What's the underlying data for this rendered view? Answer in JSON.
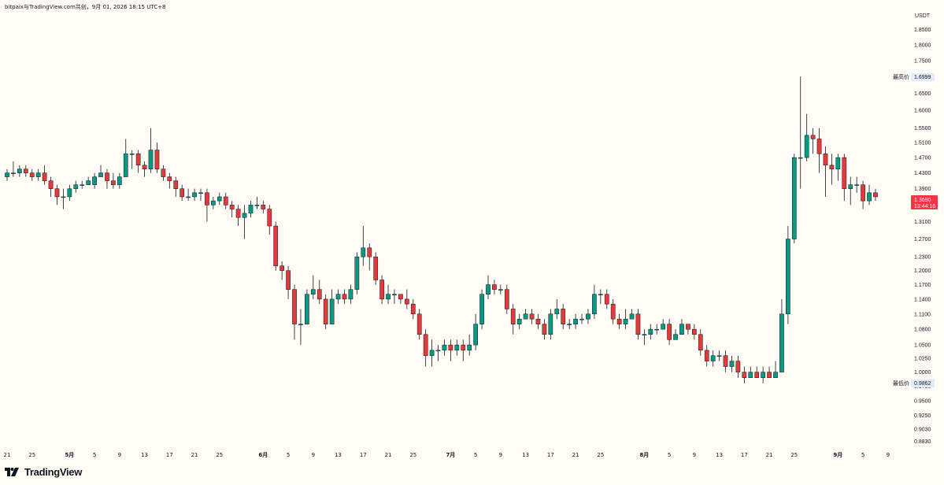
{
  "header": {
    "caption": "bitpaix与TradingView.com共创，9月 01, 2026 18:15 UTC+8"
  },
  "brand": {
    "name": "TradingView",
    "logo_icon": "tradingview-logo-icon"
  },
  "colors": {
    "up": "#089981",
    "down": "#f23645",
    "down_fill": "#e03a3a",
    "background": "#fffcf5",
    "axis_text": "#131722",
    "current_label_bg": "#f23645",
    "hi_lo_label_bg": "#e3ecfa"
  },
  "chart_data": {
    "type": "candlestick",
    "title": "",
    "y_unit": "USDT",
    "y_scale": "log",
    "ylim": [
      0.8689,
      1.9017
    ],
    "y_ticks": [
      "1.8500",
      "1.8000",
      "1.7500",
      "1.7000",
      "1.6500",
      "1.6000",
      "1.5500",
      "1.5100",
      "1.4700",
      "1.4300",
      "1.3900",
      "1.3500",
      "1.3100",
      "1.2700",
      "1.2300",
      "1.2000",
      "1.1700",
      "1.1400",
      "1.1100",
      "1.0800",
      "1.0500",
      "1.0250",
      "1.0000",
      "0.9750",
      "0.9500",
      "0.9250",
      "0.9030",
      "0.8830"
    ],
    "x_ticks": [
      {
        "label": "21",
        "day": 0
      },
      {
        "label": "25",
        "day": 4
      },
      {
        "label": "5月",
        "day": 10
      },
      {
        "label": "5",
        "day": 14
      },
      {
        "label": "9",
        "day": 18
      },
      {
        "label": "13",
        "day": 22
      },
      {
        "label": "17",
        "day": 26
      },
      {
        "label": "21",
        "day": 30
      },
      {
        "label": "25",
        "day": 34
      },
      {
        "label": "6月",
        "day": 41
      },
      {
        "label": "5",
        "day": 45
      },
      {
        "label": "9",
        "day": 49
      },
      {
        "label": "13",
        "day": 53
      },
      {
        "label": "17",
        "day": 57
      },
      {
        "label": "21",
        "day": 61
      },
      {
        "label": "25",
        "day": 65
      },
      {
        "label": "7月",
        "day": 71
      },
      {
        "label": "5",
        "day": 75
      },
      {
        "label": "9",
        "day": 79
      },
      {
        "label": "13",
        "day": 83
      },
      {
        "label": "17",
        "day": 87
      },
      {
        "label": "21",
        "day": 91
      },
      {
        "label": "25",
        "day": 95
      },
      {
        "label": "8月",
        "day": 102
      },
      {
        "label": "5",
        "day": 106
      },
      {
        "label": "9",
        "day": 110
      },
      {
        "label": "13",
        "day": 114
      },
      {
        "label": "17",
        "day": 118
      },
      {
        "label": "21",
        "day": 122
      },
      {
        "label": "25",
        "day": 126
      },
      {
        "label": "9月",
        "day": 133
      },
      {
        "label": "5",
        "day": 137
      },
      {
        "label": "9",
        "day": 141
      }
    ],
    "x_start_date": "2026-04-21",
    "high_label": {
      "text": "最高价",
      "value": "1.6999"
    },
    "low_label": {
      "text": "最低价",
      "value": "0.9862"
    },
    "current_label": {
      "value": "1.3690",
      "countdown": "13:44:16"
    },
    "candles": [
      [
        1.42,
        1.43,
        1.44,
        1.41
      ],
      [
        1.43,
        1.43,
        1.46,
        1.42
      ],
      [
        1.43,
        1.44,
        1.45,
        1.42
      ],
      [
        1.44,
        1.43,
        1.45,
        1.42
      ],
      [
        1.43,
        1.42,
        1.44,
        1.41
      ],
      [
        1.42,
        1.43,
        1.44,
        1.41
      ],
      [
        1.43,
        1.41,
        1.45,
        1.4
      ],
      [
        1.41,
        1.39,
        1.42,
        1.37
      ],
      [
        1.39,
        1.37,
        1.4,
        1.35
      ],
      [
        1.37,
        1.37,
        1.39,
        1.34
      ],
      [
        1.37,
        1.39,
        1.4,
        1.36
      ],
      [
        1.39,
        1.4,
        1.41,
        1.38
      ],
      [
        1.4,
        1.4,
        1.41,
        1.39
      ],
      [
        1.4,
        1.41,
        1.42,
        1.4
      ],
      [
        1.4,
        1.42,
        1.43,
        1.39
      ],
      [
        1.42,
        1.43,
        1.45,
        1.42
      ],
      [
        1.43,
        1.41,
        1.44,
        1.39
      ],
      [
        1.41,
        1.4,
        1.43,
        1.39
      ],
      [
        1.4,
        1.42,
        1.43,
        1.39
      ],
      [
        1.42,
        1.48,
        1.52,
        1.42
      ],
      [
        1.48,
        1.48,
        1.49,
        1.44
      ],
      [
        1.48,
        1.45,
        1.49,
        1.43
      ],
      [
        1.45,
        1.44,
        1.46,
        1.42
      ],
      [
        1.44,
        1.49,
        1.55,
        1.43
      ],
      [
        1.49,
        1.44,
        1.51,
        1.43
      ],
      [
        1.44,
        1.42,
        1.45,
        1.41
      ],
      [
        1.42,
        1.41,
        1.43,
        1.39
      ],
      [
        1.41,
        1.39,
        1.42,
        1.37
      ],
      [
        1.39,
        1.37,
        1.4,
        1.36
      ],
      [
        1.37,
        1.37,
        1.39,
        1.36
      ],
      [
        1.37,
        1.38,
        1.39,
        1.36
      ],
      [
        1.38,
        1.38,
        1.39,
        1.36
      ],
      [
        1.38,
        1.35,
        1.39,
        1.31
      ],
      [
        1.35,
        1.36,
        1.37,
        1.34
      ],
      [
        1.36,
        1.37,
        1.38,
        1.35
      ],
      [
        1.37,
        1.35,
        1.38,
        1.34
      ],
      [
        1.35,
        1.34,
        1.36,
        1.32
      ],
      [
        1.34,
        1.32,
        1.35,
        1.3
      ],
      [
        1.32,
        1.33,
        1.35,
        1.27
      ],
      [
        1.33,
        1.35,
        1.36,
        1.32
      ],
      [
        1.35,
        1.35,
        1.37,
        1.34
      ],
      [
        1.35,
        1.34,
        1.36,
        1.33
      ],
      [
        1.34,
        1.3,
        1.35,
        1.28
      ],
      [
        1.3,
        1.21,
        1.31,
        1.2
      ],
      [
        1.21,
        1.2,
        1.22,
        1.18
      ],
      [
        1.2,
        1.16,
        1.21,
        1.14
      ],
      [
        1.16,
        1.09,
        1.17,
        1.06
      ],
      [
        1.09,
        1.09,
        1.12,
        1.05
      ],
      [
        1.09,
        1.15,
        1.16,
        1.09
      ],
      [
        1.15,
        1.16,
        1.19,
        1.14
      ],
      [
        1.16,
        1.14,
        1.18,
        1.13
      ],
      [
        1.14,
        1.09,
        1.15,
        1.08
      ],
      [
        1.09,
        1.14,
        1.16,
        1.09
      ],
      [
        1.14,
        1.15,
        1.16,
        1.13
      ],
      [
        1.15,
        1.14,
        1.16,
        1.13
      ],
      [
        1.14,
        1.16,
        1.17,
        1.13
      ],
      [
        1.16,
        1.23,
        1.24,
        1.15
      ],
      [
        1.23,
        1.25,
        1.3,
        1.21
      ],
      [
        1.25,
        1.23,
        1.26,
        1.2
      ],
      [
        1.23,
        1.18,
        1.24,
        1.17
      ],
      [
        1.18,
        1.14,
        1.19,
        1.13
      ],
      [
        1.14,
        1.15,
        1.17,
        1.13
      ],
      [
        1.15,
        1.15,
        1.16,
        1.13
      ],
      [
        1.15,
        1.14,
        1.15,
        1.13
      ],
      [
        1.14,
        1.13,
        1.16,
        1.12
      ],
      [
        1.13,
        1.11,
        1.14,
        1.1
      ],
      [
        1.11,
        1.07,
        1.12,
        1.06
      ],
      [
        1.07,
        1.03,
        1.08,
        1.01
      ],
      [
        1.03,
        1.04,
        1.06,
        1.01
      ],
      [
        1.04,
        1.04,
        1.05,
        1.02
      ],
      [
        1.04,
        1.05,
        1.06,
        1.03
      ],
      [
        1.05,
        1.04,
        1.06,
        1.02
      ],
      [
        1.04,
        1.05,
        1.06,
        1.03
      ],
      [
        1.05,
        1.04,
        1.06,
        1.02
      ],
      [
        1.04,
        1.05,
        1.07,
        1.03
      ],
      [
        1.05,
        1.09,
        1.11,
        1.04
      ],
      [
        1.09,
        1.15,
        1.16,
        1.08
      ],
      [
        1.15,
        1.17,
        1.19,
        1.14
      ],
      [
        1.17,
        1.16,
        1.18,
        1.15
      ],
      [
        1.16,
        1.16,
        1.17,
        1.15
      ],
      [
        1.16,
        1.12,
        1.17,
        1.11
      ],
      [
        1.12,
        1.09,
        1.13,
        1.07
      ],
      [
        1.09,
        1.1,
        1.11,
        1.08
      ],
      [
        1.1,
        1.11,
        1.12,
        1.1
      ],
      [
        1.11,
        1.1,
        1.12,
        1.09
      ],
      [
        1.1,
        1.09,
        1.11,
        1.08
      ],
      [
        1.09,
        1.07,
        1.1,
        1.06
      ],
      [
        1.07,
        1.11,
        1.12,
        1.06
      ],
      [
        1.11,
        1.12,
        1.14,
        1.1
      ],
      [
        1.12,
        1.09,
        1.13,
        1.08
      ],
      [
        1.09,
        1.09,
        1.1,
        1.08
      ],
      [
        1.09,
        1.1,
        1.11,
        1.08
      ],
      [
        1.1,
        1.1,
        1.11,
        1.09
      ],
      [
        1.1,
        1.11,
        1.12,
        1.09
      ],
      [
        1.11,
        1.15,
        1.17,
        1.1
      ],
      [
        1.15,
        1.15,
        1.16,
        1.13
      ],
      [
        1.15,
        1.13,
        1.16,
        1.12
      ],
      [
        1.13,
        1.1,
        1.14,
        1.09
      ],
      [
        1.1,
        1.09,
        1.11,
        1.08
      ],
      [
        1.09,
        1.1,
        1.12,
        1.08
      ],
      [
        1.1,
        1.11,
        1.12,
        1.1
      ],
      [
        1.11,
        1.07,
        1.12,
        1.06
      ],
      [
        1.07,
        1.07,
        1.08,
        1.05
      ],
      [
        1.07,
        1.08,
        1.09,
        1.06
      ],
      [
        1.08,
        1.08,
        1.09,
        1.07
      ],
      [
        1.08,
        1.09,
        1.1,
        1.08
      ],
      [
        1.09,
        1.06,
        1.1,
        1.05
      ],
      [
        1.06,
        1.07,
        1.08,
        1.06
      ],
      [
        1.07,
        1.09,
        1.1,
        1.07
      ],
      [
        1.09,
        1.08,
        1.09,
        1.07
      ],
      [
        1.08,
        1.07,
        1.09,
        1.06
      ],
      [
        1.07,
        1.04,
        1.08,
        1.03
      ],
      [
        1.04,
        1.02,
        1.05,
        1.01
      ],
      [
        1.02,
        1.03,
        1.04,
        1.01
      ],
      [
        1.03,
        1.03,
        1.04,
        1.02
      ],
      [
        1.03,
        1.01,
        1.04,
        1.0
      ],
      [
        1.01,
        1.02,
        1.03,
        1.0
      ],
      [
        1.02,
        1.0,
        1.03,
        0.99
      ],
      [
        1.0,
        0.99,
        1.01,
        0.98
      ],
      [
        0.99,
        1.0,
        1.01,
        0.99
      ],
      [
        1.0,
        0.99,
        1.01,
        0.99
      ],
      [
        0.99,
        1.0,
        1.01,
        0.98
      ],
      [
        1.0,
        0.99,
        1.01,
        0.99
      ],
      [
        0.99,
        1.0,
        1.02,
        0.99
      ],
      [
        1.0,
        1.11,
        1.14,
        1.0
      ],
      [
        1.11,
        1.27,
        1.3,
        1.09
      ],
      [
        1.27,
        1.47,
        1.48,
        1.26
      ],
      [
        1.47,
        1.47,
        1.7,
        1.39
      ],
      [
        1.47,
        1.53,
        1.59,
        1.46
      ],
      [
        1.53,
        1.52,
        1.55,
        1.48
      ],
      [
        1.52,
        1.48,
        1.55,
        1.43
      ],
      [
        1.48,
        1.45,
        1.5,
        1.37
      ],
      [
        1.45,
        1.44,
        1.48,
        1.4
      ],
      [
        1.44,
        1.47,
        1.48,
        1.41
      ],
      [
        1.47,
        1.39,
        1.48,
        1.36
      ],
      [
        1.39,
        1.4,
        1.42,
        1.35
      ],
      [
        1.4,
        1.4,
        1.42,
        1.38
      ],
      [
        1.4,
        1.36,
        1.41,
        1.34
      ],
      [
        1.36,
        1.38,
        1.4,
        1.35
      ],
      [
        1.38,
        1.37,
        1.39,
        1.36
      ]
    ]
  }
}
